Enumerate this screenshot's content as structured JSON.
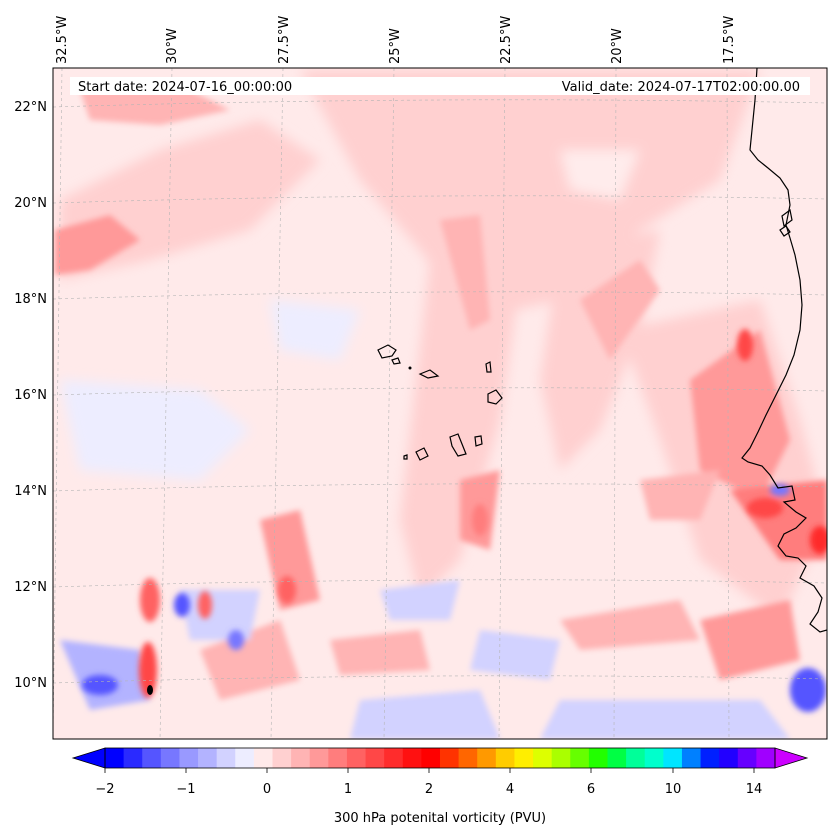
{
  "map": {
    "start_date": "Start date: 2024-07-16_00:00:00",
    "valid_date": "Valid_date: 2024-07-17T02:00:00.00",
    "lon_labels": [
      "32.5°W",
      "30°W",
      "27.5°W",
      "25°W",
      "22.5°W",
      "20°W",
      "17.5°W"
    ],
    "lat_labels": [
      "22°N",
      "20°N",
      "18°N",
      "16°N",
      "14°N",
      "12°N",
      "10°N"
    ],
    "extent": {
      "lon_min": -32.7,
      "lon_max": -15.0,
      "lat_min": 8.9,
      "lat_max": 22.8
    }
  },
  "colorbar": {
    "label": "300 hPa potenital vorticity (PVU)",
    "tick_labels": [
      "−2",
      "−1",
      "0",
      "1",
      "2",
      "4",
      "6",
      "10",
      "14"
    ],
    "tick_values": [
      -2,
      -1,
      0,
      1,
      2,
      4,
      6,
      10,
      14
    ],
    "colors": [
      "#0000ff",
      "#2a2aff",
      "#5555ff",
      "#7777ff",
      "#9999ff",
      "#b3b3ff",
      "#d2d2ff",
      "#ededff",
      "#ffeaea",
      "#ffd0d0",
      "#ffb4b4",
      "#ff9999",
      "#ff7d7d",
      "#ff6262",
      "#ff4747",
      "#ff2c2c",
      "#ff1111",
      "#ff0000",
      "#ff3300",
      "#ff6600",
      "#ff9900",
      "#ffcc00",
      "#ffee00",
      "#ddff00",
      "#aaff00",
      "#66ff00",
      "#22ff00",
      "#00ff44",
      "#00ff99",
      "#00ffcc",
      "#00e5ff",
      "#0080ff",
      "#0020ff",
      "#2200ff",
      "#6600ff",
      "#a000ff"
    ],
    "extend_low_color": "#0000ff",
    "extend_high_color": "#cc00ff"
  },
  "style": {
    "background_tint": "#ffeaea",
    "coastline_color": "#000000",
    "gridline_color": "#b4b4b4"
  }
}
